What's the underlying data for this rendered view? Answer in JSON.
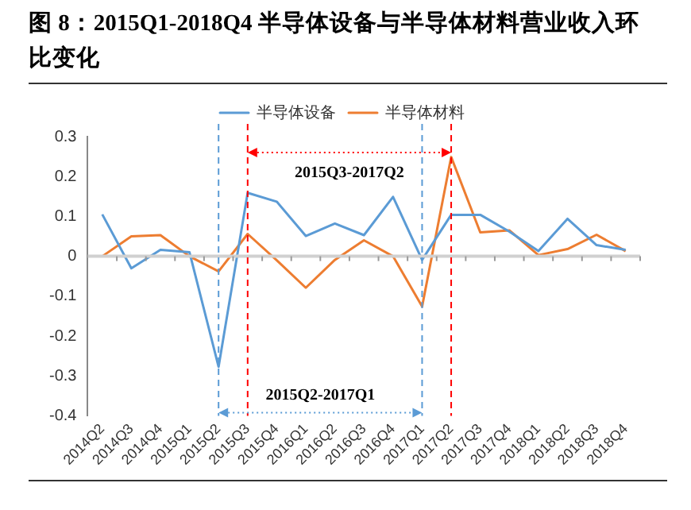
{
  "chart_data": {
    "type": "line",
    "title": "图 8：2015Q1-2018Q4 半导体设备与半导体材料营业收入环比变化",
    "categories": [
      "2014Q2",
      "2014Q3",
      "2014Q4",
      "2015Q1",
      "2015Q2",
      "2015Q3",
      "2015Q4",
      "2016Q1",
      "2016Q2",
      "2016Q3",
      "2016Q4",
      "2017Q1",
      "2017Q2",
      "2017Q3",
      "2017Q4",
      "2018Q1",
      "2018Q2",
      "2018Q3",
      "2018Q4"
    ],
    "series": [
      {
        "name": "半导体设备",
        "color": "#5b9bd5",
        "values": [
          0.105,
          -0.03,
          0.016,
          0.01,
          -0.277,
          0.159,
          0.137,
          0.051,
          0.082,
          0.053,
          0.149,
          -0.009,
          0.104,
          0.104,
          0.062,
          0.013,
          0.094,
          0.028,
          0.016
        ]
      },
      {
        "name": "半导体材料",
        "color": "#ed7d31",
        "values": [
          0,
          0.05,
          0.053,
          0,
          -0.038,
          0.056,
          -0.01,
          -0.079,
          -0.009,
          0.04,
          0,
          -0.126,
          0.249,
          0.06,
          0.065,
          0.003,
          0.018,
          0.054,
          0.013
        ]
      }
    ],
    "ylim": [
      -0.4,
      0.3
    ],
    "yticks": [
      -0.4,
      -0.3,
      -0.2,
      -0.1,
      0,
      0.1,
      0.2,
      0.3
    ],
    "grid": false,
    "legend": "top",
    "marker": "none",
    "line_style": "solid",
    "ref_lines": [
      {
        "axis": "x",
        "value": "2015Q3",
        "color": "#ff0000",
        "line_style": "dashed"
      },
      {
        "axis": "x",
        "value": "2017Q2",
        "color": "#ff0000",
        "line_style": "dashed"
      },
      {
        "axis": "x",
        "value": "2015Q2",
        "color": "#5b9bd5",
        "line_style": "dashed"
      },
      {
        "axis": "x",
        "value": "2017Q1",
        "color": "#5b9bd5",
        "line_style": "dashed"
      }
    ],
    "annotations": [
      "2015Q3-2017Q2",
      "2015Q2-2017Q1"
    ]
  }
}
